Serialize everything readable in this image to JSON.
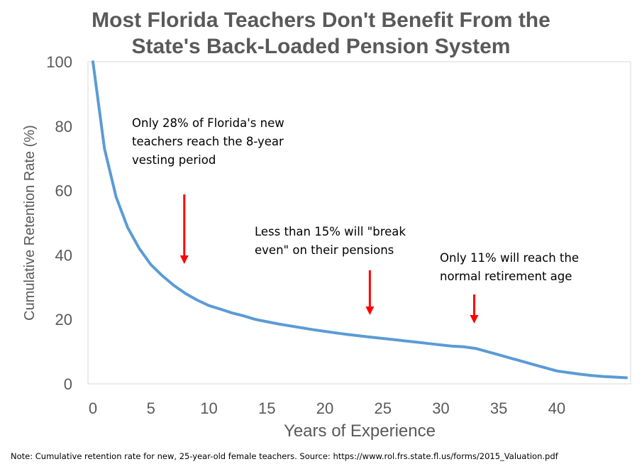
{
  "title_line1": "Most Florida Teachers Don't Benefit From the",
  "title_line2": "State's Back-Loaded Pension System",
  "note": "Note: Cumulative retention rate for new, 25-year-old female teachers. Source: https://www.rol.frs.state.fl.us/forms/2015_Valuation.pdf",
  "annotations": [
    {
      "line1": "Only 28% of Florida's new",
      "line2": "teachers reach the 8-year",
      "line3": "vesting period",
      "x_year": 8
    },
    {
      "line1": "Less than 15% will \"break",
      "line2": "even\" on their pensions",
      "line3": "",
      "x_year": 24
    },
    {
      "line1": "Only 11% will reach the",
      "line2": "normal retirement age",
      "line3": "",
      "x_year": 33
    }
  ],
  "colors": {
    "line": "#5b9bd5",
    "arrow": "#ff0000",
    "title": "#595959",
    "axis_text": "#595959"
  },
  "chart_data": {
    "type": "line",
    "title": "Most Florida Teachers Don't Benefit From the State's Back-Loaded Pension System",
    "xlabel": "Years of Experience",
    "ylabel": "Cumulative Retention Rate (%)",
    "xlim": [
      0,
      46
    ],
    "ylim": [
      0,
      100
    ],
    "x_ticks": [
      "0",
      "5",
      "10",
      "15",
      "20",
      "25",
      "30",
      "35",
      "40"
    ],
    "y_ticks": [
      "0",
      "20",
      "40",
      "60",
      "80",
      "100"
    ],
    "grid": false,
    "legend": "none",
    "series": [
      {
        "x": [
          0,
          1,
          2,
          3,
          4,
          5,
          6,
          7,
          8,
          9,
          10,
          11,
          12,
          13,
          14,
          15,
          16,
          17,
          18,
          19,
          20,
          21,
          22,
          23,
          24,
          25,
          26,
          27,
          28,
          29,
          30,
          31,
          32,
          33,
          34,
          35,
          36,
          37,
          38,
          39,
          40,
          41,
          42,
          43,
          44,
          45,
          46
        ],
        "values": [
          100,
          73,
          58,
          48.5,
          42,
          37,
          33.5,
          30.5,
          28,
          26,
          24.3,
          23.2,
          22,
          21.1,
          20,
          19.3,
          18.6,
          18,
          17.4,
          16.8,
          16.3,
          15.8,
          15.3,
          14.9,
          14.5,
          14.1,
          13.7,
          13.3,
          12.9,
          12.5,
          12.1,
          11.7,
          11.5,
          11,
          10,
          9,
          8,
          7,
          6,
          5,
          4,
          3.5,
          3,
          2.6,
          2.3,
          2.1,
          1.9
        ]
      }
    ]
  }
}
